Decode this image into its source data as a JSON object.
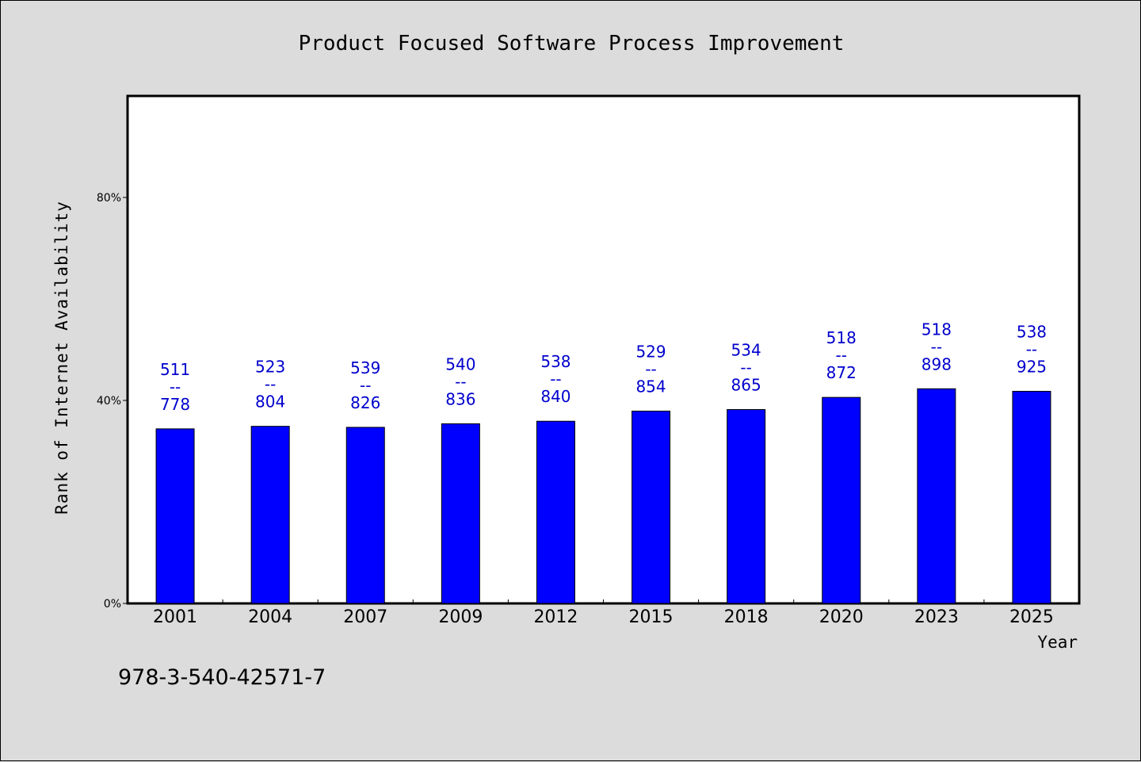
{
  "chart_data": {
    "type": "bar",
    "title": "Product Focused Software Process Improvement",
    "xlabel": "Year",
    "ylabel": "Rank of Internet Availability",
    "categories": [
      "2001",
      "2004",
      "2007",
      "2009",
      "2012",
      "2015",
      "2018",
      "2020",
      "2023",
      "2025"
    ],
    "values": [
      34.4,
      34.9,
      34.7,
      35.4,
      35.9,
      37.9,
      38.2,
      40.6,
      42.3,
      41.8
    ],
    "value_labels": [
      [
        "511",
        "--",
        "778"
      ],
      [
        "523",
        "--",
        "804"
      ],
      [
        "539",
        "--",
        "826"
      ],
      [
        "540",
        "--",
        "836"
      ],
      [
        "538",
        "--",
        "840"
      ],
      [
        "529",
        "--",
        "854"
      ],
      [
        "534",
        "--",
        "865"
      ],
      [
        "518",
        "--",
        "872"
      ],
      [
        "518",
        "--",
        "898"
      ],
      [
        "538",
        "--",
        "925"
      ]
    ],
    "yticks": [
      {
        "value": 0,
        "label": "0%"
      },
      {
        "value": 40,
        "label": "40%"
      },
      {
        "value": 80,
        "label": "80%"
      }
    ],
    "ylim": [
      0,
      100
    ],
    "grid": false,
    "legend": "none",
    "bar_color": "#0000ff",
    "label_color": "#0000cc"
  },
  "footer_text": "978-3-540-42571-7"
}
